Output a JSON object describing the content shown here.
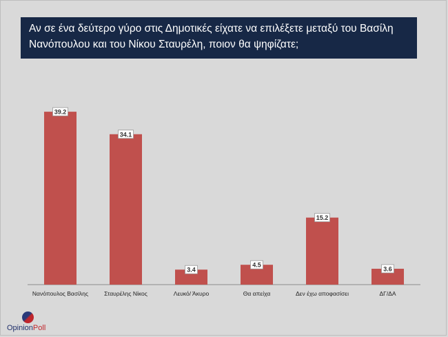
{
  "chart_data": {
    "type": "bar",
    "title": "Αν σε ένα δεύτερο γύρο στις Δημοτικές είχατε να επιλέξετε μεταξύ του Βασίλη Νανόπουλου και του Νίκου Σταυρέλη, ποιον θα ψηφίζατε;",
    "categories": [
      "Νανόπουλος Βασίλης",
      "Σταυρέλης Νίκος",
      "Λευκό/ Άκυρο",
      "Θα απείχα",
      "Δεν έχω αποφασίσει",
      "ΔΓ/ΔΑ"
    ],
    "values": [
      39.2,
      34.1,
      3.4,
      4.5,
      15.2,
      3.6
    ],
    "value_labels": [
      "39.2",
      "34.1",
      "3.4",
      "4.5",
      "15.2",
      "3.6"
    ],
    "xlabel": "",
    "ylabel": "",
    "ylim": [
      0,
      40
    ],
    "grid": false,
    "bar_color": "#c0504d"
  },
  "logo": {
    "part1": "Opinion",
    "part2": "Poll"
  }
}
